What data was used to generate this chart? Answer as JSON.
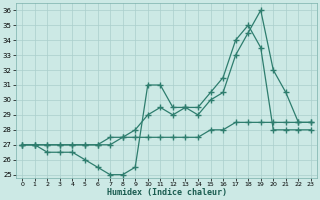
{
  "xlabel": "Humidex (Indice chaleur)",
  "x_values": [
    0,
    1,
    2,
    3,
    4,
    5,
    6,
    7,
    8,
    9,
    10,
    11,
    12,
    13,
    14,
    15,
    16,
    17,
    18,
    19,
    20,
    21,
    22,
    23
  ],
  "line1": [
    27,
    27,
    26.5,
    26.5,
    26.5,
    26,
    25.5,
    25,
    25,
    25.5,
    31,
    31,
    29.5,
    29.5,
    29,
    30,
    30.5,
    33,
    34.5,
    36,
    32,
    30.5,
    28.5,
    28.5
  ],
  "line2": [
    27,
    27,
    27,
    27,
    27,
    27,
    27,
    27.5,
    27.5,
    28,
    29,
    29.5,
    29,
    29.5,
    29.5,
    30.5,
    31.5,
    34,
    35,
    33.5,
    28,
    28,
    28,
    28
  ],
  "line3": [
    27,
    27,
    27,
    27,
    27,
    27,
    27,
    27,
    27.5,
    27.5,
    27.5,
    27.5,
    27.5,
    27.5,
    27.5,
    28,
    28,
    28.5,
    28.5,
    28.5,
    28.5,
    28.5,
    28.5,
    28.5
  ],
  "line_color": "#2e7d6e",
  "bg_color": "#cce9e5",
  "grid_color": "#aacfcc",
  "xlim": [
    -0.5,
    23.5
  ],
  "ylim": [
    24.8,
    36.5
  ],
  "yticks": [
    25,
    26,
    27,
    28,
    29,
    30,
    31,
    32,
    33,
    34,
    35,
    36
  ],
  "xticks": [
    0,
    1,
    2,
    3,
    4,
    5,
    6,
    7,
    8,
    9,
    10,
    11,
    12,
    13,
    14,
    15,
    16,
    17,
    18,
    19,
    20,
    21,
    22,
    23
  ]
}
